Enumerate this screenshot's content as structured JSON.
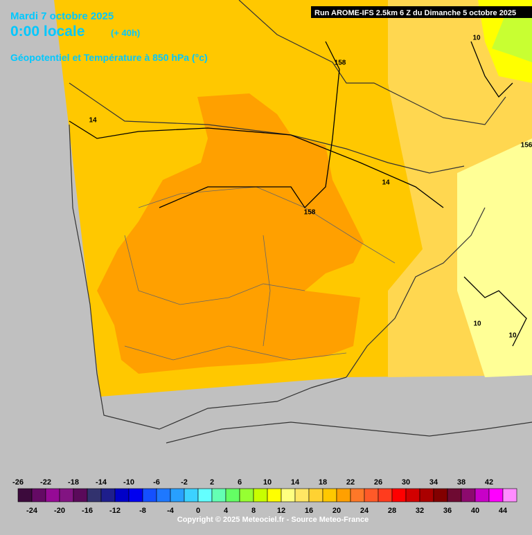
{
  "header": {
    "date": "Mardi 7 octobre 2025",
    "time": "0:00 locale",
    "lead": "(+ 40h)",
    "field": "Géopotentiel et Température à 850 hPa (°c)",
    "run": "Run AROME-IFS 2.5km 6 Z du Dimanche 5 octobre 2025"
  },
  "contour_labels": [
    "158",
    "14",
    "158",
    "14",
    "10",
    "156",
    "10",
    "10"
  ],
  "legend": {
    "values": [
      -26,
      -24,
      -22,
      -20,
      -18,
      -16,
      -14,
      -12,
      -10,
      -8,
      -6,
      -4,
      -2,
      0,
      2,
      4,
      6,
      8,
      10,
      12,
      14,
      16,
      18,
      20,
      22,
      24,
      26,
      28,
      30,
      32,
      34,
      36,
      38,
      40,
      42,
      44
    ],
    "colors": [
      "#3c0a3c",
      "#640a64",
      "#960a96",
      "#821482",
      "#5a0a5a",
      "#32326e",
      "#1e1e8c",
      "#0000c8",
      "#0000f0",
      "#1450ff",
      "#1e78ff",
      "#28a0ff",
      "#3cd2ff",
      "#64ffff",
      "#64ffb4",
      "#64ff64",
      "#96ff32",
      "#c8ff00",
      "#ffff00",
      "#ffff80",
      "#ffe664",
      "#ffd232",
      "#ffc800",
      "#ffa000",
      "#ff7828",
      "#ff5a28",
      "#ff3c1e",
      "#ff0000",
      "#d20000",
      "#aa0000",
      "#820000",
      "#6e0a32",
      "#8c0a6e",
      "#c800c8",
      "#ff00ff",
      "#ff8cff"
    ]
  },
  "footer": {
    "copyright": "Copyright © 2025 Meteociel.fr - Source Meteo-France"
  }
}
